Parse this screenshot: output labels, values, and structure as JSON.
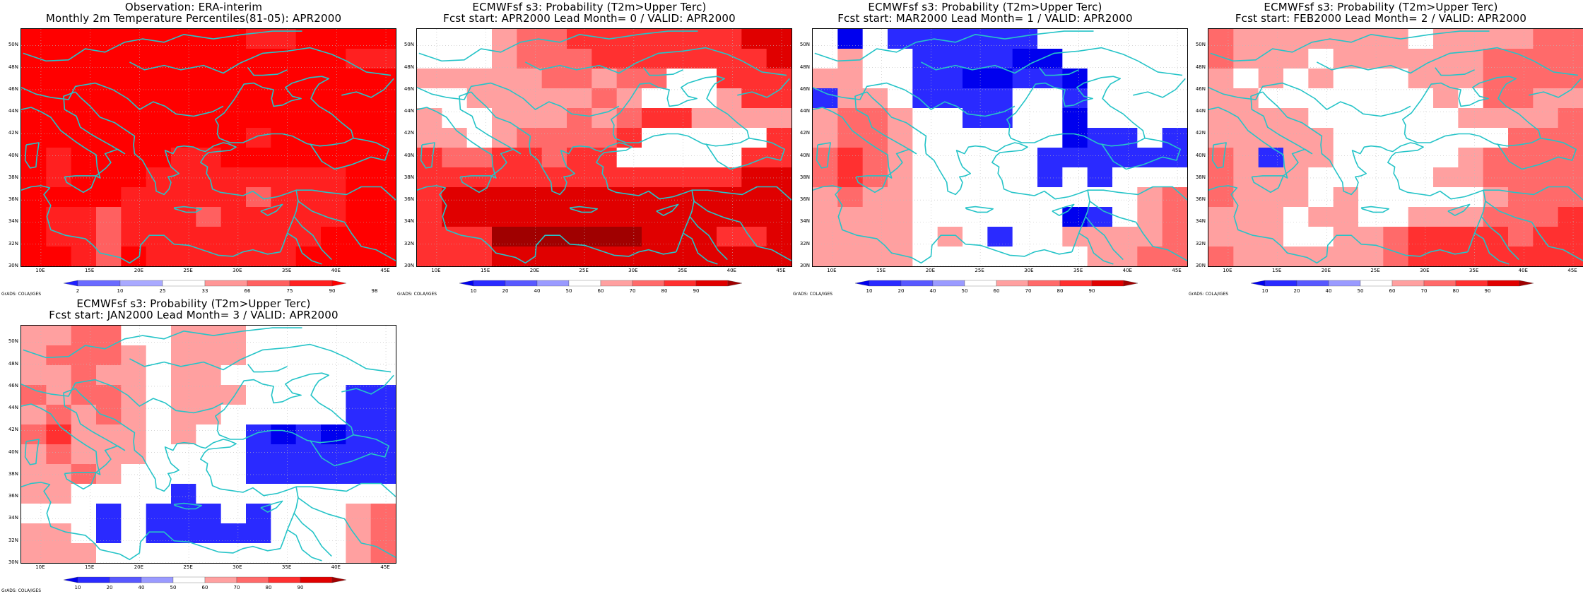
{
  "credit_text": "GrADS: COLA/IGES",
  "lat_labels": [
    "30N",
    "32N",
    "34N",
    "36N",
    "38N",
    "40N",
    "42N",
    "44N",
    "46N",
    "48N",
    "50N"
  ],
  "lon_labels": [
    "10E",
    "15E",
    "20E",
    "25E",
    "30E",
    "35E",
    "40E",
    "45E"
  ],
  "colors": {
    "coast": "#26c4c8",
    "grid": "#bbbbbb",
    "obs_scale": [
      "#2020ff",
      "#6a6aff",
      "#a9a9ff",
      "#ffffff",
      "#ff9696",
      "#ff6060",
      "#ff2020",
      "#ff0000"
    ],
    "prob_scale": [
      "#0000ee",
      "#2a2aff",
      "#5858ff",
      "#9a9aff",
      "#ffffff",
      "#ffa0a0",
      "#ff6a6a",
      "#ff3030",
      "#e00000",
      "#a00000"
    ]
  },
  "colorbars": {
    "obs": {
      "ticks": [
        "2",
        "10",
        "25",
        "33",
        "66",
        "75",
        "90",
        "98"
      ]
    },
    "prob": {
      "ticks": [
        "10",
        "20",
        "40",
        "50",
        "60",
        "70",
        "80",
        "90"
      ]
    }
  },
  "panels": [
    {
      "id": "obs",
      "title1": "Observation: ERA-interim",
      "title2": "Monthly 2m Temperature Percentiles(81-05): APR2000",
      "scale": "obs",
      "grid_values": [
        [
          7,
          7,
          7,
          7,
          7,
          7,
          7,
          7,
          7,
          6,
          6,
          7,
          7,
          7,
          7
        ],
        [
          7,
          7,
          7,
          7,
          7,
          7,
          7,
          7,
          7,
          7,
          7,
          7,
          7,
          6,
          6
        ],
        [
          7,
          7,
          7,
          7,
          7,
          7,
          7,
          7,
          7,
          7,
          7,
          7,
          7,
          7,
          7
        ],
        [
          7,
          7,
          7,
          7,
          7,
          7,
          7,
          7,
          7,
          7,
          7,
          7,
          7,
          7,
          7
        ],
        [
          7,
          7,
          7,
          7,
          7,
          7,
          7,
          7,
          7,
          7,
          7,
          7,
          7,
          7,
          7
        ],
        [
          7,
          7,
          7,
          7,
          7,
          7,
          7,
          7,
          7,
          6,
          7,
          7,
          7,
          7,
          7
        ],
        [
          7,
          6,
          7,
          7,
          7,
          7,
          6,
          6,
          7,
          7,
          7,
          7,
          7,
          7,
          7
        ],
        [
          7,
          6,
          7,
          7,
          7,
          6,
          6,
          6,
          6,
          6,
          6,
          6,
          6,
          7,
          7
        ],
        [
          7,
          7,
          7,
          7,
          6,
          6,
          6,
          6,
          6,
          5,
          6,
          6,
          6,
          7,
          7
        ],
        [
          7,
          6,
          6,
          5,
          6,
          6,
          6,
          5,
          6,
          6,
          6,
          6,
          6,
          7,
          7
        ],
        [
          7,
          6,
          6,
          5,
          6,
          6,
          6,
          6,
          6,
          6,
          6,
          6,
          7,
          7,
          7
        ],
        [
          7,
          7,
          6,
          5,
          7,
          6,
          6,
          6,
          6,
          6,
          6,
          7,
          7,
          7,
          7
        ]
      ]
    },
    {
      "id": "lead0",
      "title1": "ECMWFsf s3: Probability (T2m>Upper Terc)",
      "title2": "Fcst start: APR2000   Lead Month= 0 / VALID: APR2000",
      "scale": "prob",
      "grid_values": [
        [
          4,
          4,
          4,
          5,
          6,
          6,
          7,
          7,
          7,
          7,
          7,
          7,
          7,
          8,
          8
        ],
        [
          4,
          4,
          4,
          5,
          6,
          6,
          6,
          7,
          7,
          7,
          7,
          7,
          7,
          7,
          8
        ],
        [
          5,
          5,
          5,
          5,
          5,
          6,
          6,
          5,
          6,
          6,
          4,
          4,
          7,
          7,
          7
        ],
        [
          4,
          4,
          5,
          5,
          5,
          5,
          5,
          6,
          5,
          4,
          4,
          4,
          5,
          7,
          7
        ],
        [
          5,
          4,
          4,
          5,
          5,
          5,
          6,
          5,
          6,
          7,
          7,
          5,
          5,
          5,
          5
        ],
        [
          5,
          5,
          4,
          5,
          6,
          6,
          6,
          6,
          7,
          4,
          4,
          4,
          4,
          4,
          7
        ],
        [
          7,
          6,
          6,
          7,
          7,
          6,
          7,
          7,
          4,
          4,
          4,
          4,
          4,
          7,
          7
        ],
        [
          7,
          7,
          7,
          7,
          7,
          7,
          7,
          7,
          7,
          7,
          7,
          7,
          7,
          8,
          8
        ],
        [
          7,
          8,
          8,
          8,
          8,
          8,
          8,
          8,
          8,
          8,
          8,
          8,
          8,
          8,
          8
        ],
        [
          7,
          8,
          8,
          8,
          8,
          8,
          8,
          8,
          8,
          8,
          8,
          8,
          8,
          8,
          8
        ],
        [
          7,
          7,
          7,
          9,
          9,
          9,
          9,
          9,
          9,
          8,
          8,
          8,
          7,
          7,
          8
        ],
        [
          7,
          7,
          7,
          8,
          8,
          8,
          8,
          8,
          8,
          8,
          8,
          8,
          8,
          8,
          8
        ]
      ]
    },
    {
      "id": "lead1",
      "title1": "ECMWFsf s3: Probability (T2m>Upper Terc)",
      "title2": "Fcst start: MAR2000   Lead Month= 1 / VALID: APR2000",
      "scale": "prob",
      "grid_values": [
        [
          4,
          0,
          4,
          1,
          1,
          1,
          1,
          1,
          1,
          4,
          4,
          4,
          4,
          4,
          4
        ],
        [
          4,
          5,
          4,
          4,
          1,
          1,
          1,
          1,
          0,
          0,
          4,
          4,
          4,
          4,
          4
        ],
        [
          5,
          5,
          4,
          4,
          1,
          1,
          0,
          0,
          1,
          1,
          0,
          4,
          4,
          4,
          4
        ],
        [
          1,
          5,
          5,
          4,
          1,
          1,
          1,
          1,
          4,
          4,
          1,
          4,
          4,
          4,
          4
        ],
        [
          5,
          6,
          6,
          5,
          4,
          4,
          1,
          1,
          4,
          4,
          0,
          4,
          4,
          4,
          4
        ],
        [
          5,
          6,
          6,
          5,
          4,
          4,
          4,
          4,
          4,
          4,
          0,
          1,
          1,
          4,
          1
        ],
        [
          6,
          7,
          6,
          5,
          4,
          4,
          4,
          4,
          4,
          1,
          1,
          1,
          1,
          1,
          1
        ],
        [
          6,
          7,
          6,
          5,
          4,
          4,
          4,
          4,
          4,
          1,
          4,
          1,
          4,
          4,
          4
        ],
        [
          5,
          6,
          5,
          5,
          4,
          4,
          4,
          4,
          4,
          4,
          4,
          4,
          4,
          5,
          6
        ],
        [
          5,
          5,
          5,
          5,
          4,
          4,
          4,
          4,
          4,
          4,
          0,
          1,
          4,
          5,
          6
        ],
        [
          5,
          5,
          5,
          5,
          4,
          5,
          4,
          1,
          4,
          4,
          5,
          5,
          5,
          5,
          6
        ],
        [
          5,
          5,
          5,
          5,
          4,
          4,
          4,
          4,
          4,
          4,
          4,
          5,
          5,
          6,
          6
        ]
      ]
    },
    {
      "id": "lead2",
      "title1": "ECMWFsf s3: Probability (T2m>Upper Terc)",
      "title2": "Fcst start: FEB2000   Lead Month= 2 / VALID: APR2000",
      "scale": "prob",
      "grid_values": [
        [
          6,
          5,
          5,
          5,
          5,
          5,
          5,
          5,
          4,
          5,
          5,
          5,
          5,
          6,
          6
        ],
        [
          6,
          5,
          5,
          5,
          4,
          5,
          5,
          5,
          5,
          5,
          5,
          6,
          6,
          6,
          6
        ],
        [
          5,
          4,
          5,
          4,
          5,
          4,
          4,
          4,
          5,
          5,
          5,
          6,
          6,
          6,
          6
        ],
        [
          5,
          5,
          4,
          4,
          4,
          4,
          4,
          4,
          4,
          5,
          4,
          6,
          6,
          5,
          5
        ],
        [
          5,
          5,
          5,
          5,
          4,
          4,
          4,
          4,
          4,
          4,
          5,
          5,
          5,
          5,
          6
        ],
        [
          5,
          5,
          5,
          5,
          5,
          4,
          4,
          4,
          4,
          4,
          4,
          4,
          6,
          6,
          6
        ],
        [
          6,
          5,
          1,
          5,
          5,
          4,
          4,
          4,
          4,
          4,
          5,
          6,
          6,
          6,
          6
        ],
        [
          6,
          5,
          5,
          5,
          4,
          4,
          4,
          4,
          4,
          5,
          5,
          6,
          6,
          6,
          6
        ],
        [
          6,
          5,
          5,
          5,
          4,
          5,
          4,
          4,
          4,
          4,
          4,
          5,
          6,
          6,
          6
        ],
        [
          5,
          5,
          5,
          4,
          5,
          5,
          4,
          4,
          5,
          5,
          5,
          6,
          6,
          6,
          7
        ],
        [
          5,
          5,
          5,
          4,
          4,
          5,
          5,
          6,
          7,
          7,
          7,
          7,
          6,
          7,
          7
        ],
        [
          6,
          5,
          5,
          5,
          5,
          5,
          5,
          6,
          7,
          7,
          7,
          7,
          7,
          7,
          7
        ]
      ]
    },
    {
      "id": "lead3",
      "title1": "ECMWFsf s3: Probability (T2m>Upper Terc)",
      "title2": "Fcst start: JAN2000   Lead Month= 3 / VALID: APR2000",
      "scale": "prob",
      "grid_values": [
        [
          5,
          5,
          6,
          6,
          4,
          4,
          5,
          5,
          5,
          4,
          4,
          4,
          4,
          4,
          4
        ],
        [
          5,
          6,
          6,
          6,
          5,
          4,
          5,
          5,
          5,
          4,
          4,
          4,
          4,
          4,
          4
        ],
        [
          5,
          5,
          6,
          5,
          5,
          4,
          5,
          5,
          4,
          4,
          4,
          4,
          4,
          4,
          4
        ],
        [
          6,
          5,
          6,
          6,
          5,
          4,
          5,
          5,
          5,
          4,
          4,
          4,
          4,
          1,
          1
        ],
        [
          5,
          6,
          5,
          6,
          5,
          4,
          5,
          5,
          4,
          4,
          4,
          4,
          4,
          1,
          1
        ],
        [
          6,
          7,
          5,
          5,
          5,
          4,
          5,
          4,
          4,
          1,
          0,
          1,
          0,
          1,
          1
        ],
        [
          5,
          6,
          5,
          5,
          5,
          4,
          4,
          4,
          4,
          1,
          1,
          1,
          1,
          1,
          1
        ],
        [
          5,
          5,
          6,
          5,
          4,
          4,
          4,
          4,
          4,
          1,
          1,
          1,
          1,
          1,
          1
        ],
        [
          5,
          5,
          4,
          4,
          4,
          4,
          1,
          4,
          4,
          4,
          4,
          4,
          4,
          4,
          4
        ],
        [
          4,
          4,
          4,
          1,
          4,
          1,
          1,
          1,
          4,
          1,
          4,
          4,
          4,
          5,
          6
        ],
        [
          5,
          5,
          4,
          1,
          4,
          1,
          1,
          1,
          1,
          1,
          4,
          4,
          4,
          5,
          6
        ],
        [
          5,
          5,
          5,
          4,
          4,
          4,
          4,
          4,
          4,
          4,
          4,
          4,
          4,
          5,
          6
        ]
      ]
    }
  ]
}
